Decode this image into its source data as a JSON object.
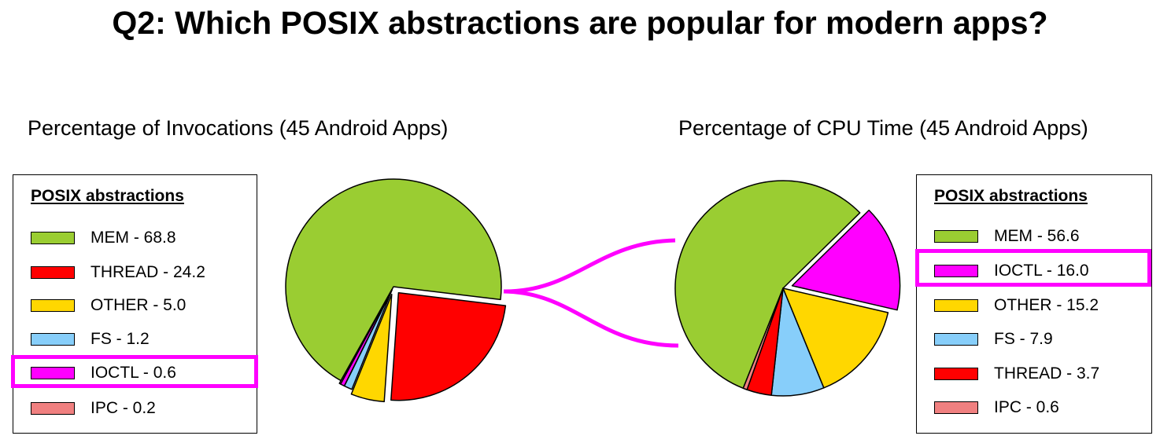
{
  "title": "Q2: Which POSIX abstractions are popular for modern apps?",
  "highlight_color": "#ff00ff",
  "chart_data": [
    {
      "type": "pie",
      "title": "Percentage of Invocations (45 Android Apps)",
      "legend_title": "POSIX abstractions",
      "legend_placement": "left",
      "slices": [
        {
          "label": "MEM - 68.8",
          "name": "MEM",
          "value": 68.8,
          "color": "#9acd32"
        },
        {
          "label": "THREAD - 24.2",
          "name": "THREAD",
          "value": 24.2,
          "color": "#ff0000"
        },
        {
          "label": "OTHER - 5.0",
          "name": "OTHER",
          "value": 5.0,
          "color": "#ffd700"
        },
        {
          "label": "FS - 1.2",
          "name": "FS",
          "value": 1.2,
          "color": "#87cefa"
        },
        {
          "label": "IOCTL - 0.6",
          "name": "IOCTL",
          "value": 0.6,
          "color": "#ff00ff"
        },
        {
          "label": "IPC - 0.2",
          "name": "IPC",
          "value": 0.2,
          "color": "#f08080"
        }
      ],
      "highlighted": "IOCTL"
    },
    {
      "type": "pie",
      "title": "Percentage of CPU Time (45 Android Apps)",
      "legend_title": "POSIX abstractions",
      "legend_placement": "right",
      "slices": [
        {
          "label": "MEM - 56.6",
          "name": "MEM",
          "value": 56.6,
          "color": "#9acd32"
        },
        {
          "label": "IOCTL - 16.0",
          "name": "IOCTL",
          "value": 16.0,
          "color": "#ff00ff"
        },
        {
          "label": "OTHER - 15.2",
          "name": "OTHER",
          "value": 15.2,
          "color": "#ffd700"
        },
        {
          "label": "FS - 7.9",
          "name": "FS",
          "value": 7.9,
          "color": "#87cefa"
        },
        {
          "label": "THREAD - 3.7",
          "name": "THREAD",
          "value": 3.7,
          "color": "#ff0000"
        },
        {
          "label": "IPC - 0.6",
          "name": "IPC",
          "value": 0.6,
          "color": "#f08080"
        }
      ],
      "highlighted": "IOCTL"
    }
  ]
}
